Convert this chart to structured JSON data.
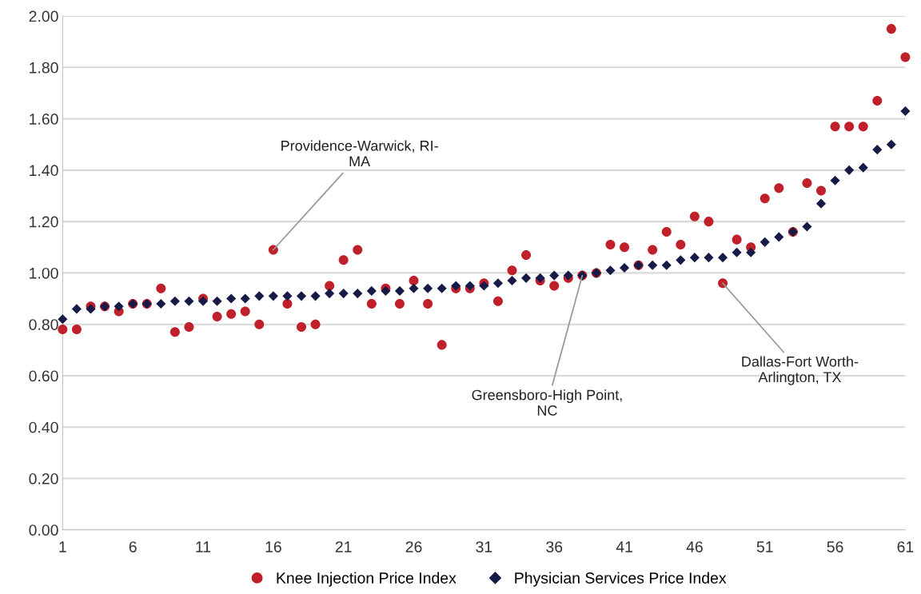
{
  "chart_data": {
    "type": "scatter",
    "x": [
      1,
      2,
      3,
      4,
      5,
      6,
      7,
      8,
      9,
      10,
      11,
      12,
      13,
      14,
      15,
      16,
      17,
      18,
      19,
      20,
      21,
      22,
      23,
      24,
      25,
      26,
      27,
      28,
      29,
      30,
      31,
      32,
      33,
      34,
      35,
      36,
      37,
      38,
      39,
      40,
      41,
      42,
      43,
      44,
      45,
      46,
      47,
      48,
      49,
      50,
      51,
      52,
      53,
      54,
      55,
      56,
      57,
      58,
      59,
      60,
      61
    ],
    "series": [
      {
        "name": "Knee Injection Price Index",
        "color": "#c0202a",
        "marker": "circle",
        "values": [
          0.78,
          0.78,
          0.87,
          0.87,
          0.85,
          0.88,
          0.88,
          0.94,
          0.77,
          0.79,
          0.9,
          0.83,
          0.84,
          0.85,
          0.8,
          1.09,
          0.88,
          0.79,
          0.8,
          0.95,
          1.05,
          1.09,
          0.88,
          0.94,
          0.88,
          0.97,
          0.88,
          0.72,
          0.94,
          0.94,
          0.96,
          0.89,
          1.01,
          1.07,
          0.97,
          0.95,
          0.98,
          0.99,
          1.0,
          1.11,
          1.1,
          1.03,
          1.09,
          1.16,
          1.11,
          1.22,
          1.2,
          0.96,
          1.13,
          1.1,
          1.29,
          1.33,
          1.16,
          1.35,
          1.32,
          1.57,
          1.57,
          1.57,
          1.67,
          1.95,
          1.84
        ]
      },
      {
        "name": "Physician Services Price Index",
        "color": "#161a47",
        "marker": "diamond",
        "values": [
          0.82,
          0.86,
          0.86,
          0.87,
          0.87,
          0.88,
          0.88,
          0.88,
          0.89,
          0.89,
          0.89,
          0.89,
          0.9,
          0.9,
          0.91,
          0.91,
          0.91,
          0.91,
          0.91,
          0.92,
          0.92,
          0.92,
          0.93,
          0.93,
          0.93,
          0.94,
          0.94,
          0.94,
          0.95,
          0.95,
          0.95,
          0.96,
          0.97,
          0.98,
          0.98,
          0.99,
          0.99,
          0.99,
          1.0,
          1.01,
          1.02,
          1.03,
          1.03,
          1.03,
          1.05,
          1.06,
          1.06,
          1.06,
          1.08,
          1.08,
          1.12,
          1.14,
          1.16,
          1.18,
          1.27,
          1.36,
          1.4,
          1.41,
          1.48,
          1.5,
          1.63
        ]
      }
    ],
    "annotations": [
      {
        "text": "Providence-Warwick, RI-\nMA",
        "x": 16,
        "y": 1.09
      },
      {
        "text": "Greensboro-High Point,\nNC",
        "x": 38,
        "y": 0.99
      },
      {
        "text": "Dallas-Fort Worth-\nArlington, TX",
        "x": 48,
        "y": 0.96
      }
    ],
    "xlim": [
      1,
      61
    ],
    "xticks": [
      1,
      6,
      11,
      16,
      21,
      26,
      31,
      36,
      41,
      46,
      51,
      56,
      61
    ],
    "ylim": [
      0,
      2
    ],
    "yticks": [
      {
        "value": 0,
        "label": "0.00"
      },
      {
        "value": 0.2,
        "label": "0.20"
      },
      {
        "value": 0.4,
        "label": "0.40"
      },
      {
        "value": 0.6,
        "label": "0.60"
      },
      {
        "value": 0.8,
        "label": "0.80"
      },
      {
        "value": 1.0,
        "label": "1.00"
      },
      {
        "value": 1.2,
        "label": "1.20"
      },
      {
        "value": 1.4,
        "label": "1.40"
      },
      {
        "value": 1.6,
        "label": "1.60"
      },
      {
        "value": 1.8,
        "label": "1.80"
      },
      {
        "value": 2.0,
        "label": "2.00"
      }
    ],
    "grid": "y",
    "legend": "bottom"
  }
}
